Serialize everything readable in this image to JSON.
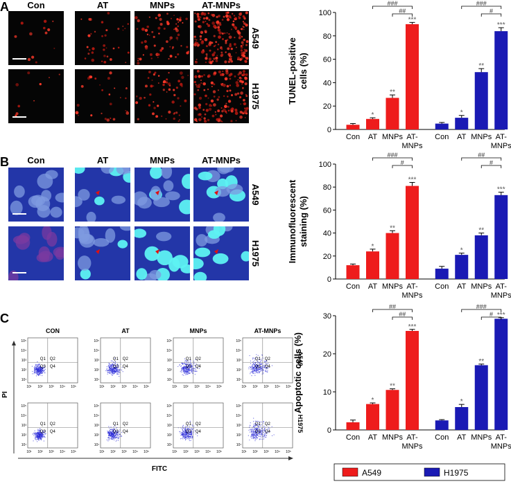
{
  "panels": {
    "A": {
      "label": "A",
      "columns": [
        "Con",
        "AT",
        "MNPs",
        "AT-MNPs"
      ],
      "rows": [
        "A549",
        "H1975"
      ]
    },
    "B": {
      "label": "B",
      "columns": [
        "Con",
        "AT",
        "MNPs",
        "AT-MNPs"
      ],
      "rows": [
        "A549",
        "H1975"
      ]
    },
    "C": {
      "label": "C",
      "columns": [
        "CON",
        "AT",
        "MNPs",
        "AT-MNPs"
      ],
      "rows": [
        "A549",
        "H1975"
      ],
      "y_axis": "PI",
      "x_axis": "FITC",
      "quadrants": [
        "Q1",
        "Q2",
        "Q3",
        "Q4"
      ],
      "ticks": [
        "10¹",
        "10²",
        "10³",
        "10⁴",
        "10⁵"
      ]
    }
  },
  "chart_data": [
    {
      "type": "bar",
      "ylabel": [
        "TUNEL-positive",
        "cells (%)"
      ],
      "categories": [
        "Con",
        "AT",
        "MNPs",
        "AT-MNPs"
      ],
      "ylim": [
        0,
        100
      ],
      "yticks": [
        0,
        20,
        40,
        60,
        80,
        100
      ],
      "series": [
        {
          "name": "A549",
          "color": "#ee1c1c",
          "values": [
            4,
            9,
            27,
            90
          ],
          "errors": [
            1,
            1,
            2.5,
            1.5
          ],
          "stars": [
            null,
            "*",
            "**",
            "***"
          ],
          "comparisons": [
            {
              "label": "###",
              "between": [
                "AT",
                "AT-MNPs"
              ]
            },
            {
              "label": "##",
              "between": [
                "MNPs",
                "AT-MNPs"
              ]
            }
          ]
        },
        {
          "name": "H1975",
          "color": "#1a1ab4",
          "values": [
            5,
            10,
            49,
            84
          ],
          "errors": [
            1,
            2,
            3,
            3
          ],
          "stars": [
            null,
            "*",
            "**",
            "***"
          ],
          "comparisons": [
            {
              "label": "###",
              "between": [
                "AT",
                "AT-MNPs"
              ]
            },
            {
              "label": "#",
              "between": [
                "MNPs",
                "AT-MNPs"
              ]
            }
          ]
        }
      ]
    },
    {
      "type": "bar",
      "ylabel": [
        "Immunofluorescent",
        "staining (%)"
      ],
      "categories": [
        "Con",
        "AT",
        "MNPs",
        "AT-MNPs"
      ],
      "ylim": [
        0,
        100
      ],
      "yticks": [
        0,
        20,
        40,
        60,
        80,
        100
      ],
      "series": [
        {
          "name": "A549",
          "color": "#ee1c1c",
          "values": [
            12,
            24,
            40,
            81
          ],
          "errors": [
            1,
            2,
            2,
            3
          ],
          "stars": [
            null,
            "*",
            "**",
            "***"
          ],
          "comparisons": [
            {
              "label": "###",
              "between": [
                "AT",
                "AT-MNPs"
              ]
            },
            {
              "label": "#",
              "between": [
                "MNPs",
                "AT-MNPs"
              ]
            }
          ]
        },
        {
          "name": "H1975",
          "color": "#1a1ab4",
          "values": [
            9,
            21,
            38,
            73
          ],
          "errors": [
            2,
            1.5,
            2,
            2.5
          ],
          "stars": [
            null,
            "*",
            "**",
            "***"
          ],
          "comparisons": [
            {
              "label": "##",
              "between": [
                "AT",
                "AT-MNPs"
              ]
            },
            {
              "label": "#",
              "between": [
                "MNPs",
                "AT-MNPs"
              ]
            }
          ]
        }
      ]
    },
    {
      "type": "bar",
      "ylabel": [
        "Apoptotic cells (%)"
      ],
      "categories": [
        "Con",
        "AT",
        "MNPs",
        "AT-MNPs"
      ],
      "ylim": [
        0,
        30
      ],
      "yticks": [
        0,
        10,
        20,
        30
      ],
      "series": [
        {
          "name": "A549",
          "color": "#ee1c1c",
          "values": [
            2,
            6.8,
            10.5,
            26
          ],
          "errors": [
            0.6,
            0.3,
            0.3,
            0.4
          ],
          "stars": [
            null,
            "*",
            "**",
            "***"
          ],
          "comparisons": [
            {
              "label": "##",
              "between": [
                "AT",
                "AT-MNPs"
              ]
            },
            {
              "label": "##",
              "between": [
                "MNPs",
                "AT-MNPs"
              ]
            }
          ]
        },
        {
          "name": "H1975",
          "color": "#1a1ab4",
          "values": [
            2.5,
            6,
            17,
            29.2
          ],
          "errors": [
            0.2,
            0.7,
            0.3,
            0.3
          ],
          "stars": [
            null,
            "*",
            "**",
            "***"
          ],
          "comparisons": [
            {
              "label": "###",
              "between": [
                "AT",
                "AT-MNPs"
              ]
            },
            {
              "label": "#",
              "between": [
                "MNPs",
                "AT-MNPs"
              ]
            }
          ]
        }
      ]
    }
  ]
}
